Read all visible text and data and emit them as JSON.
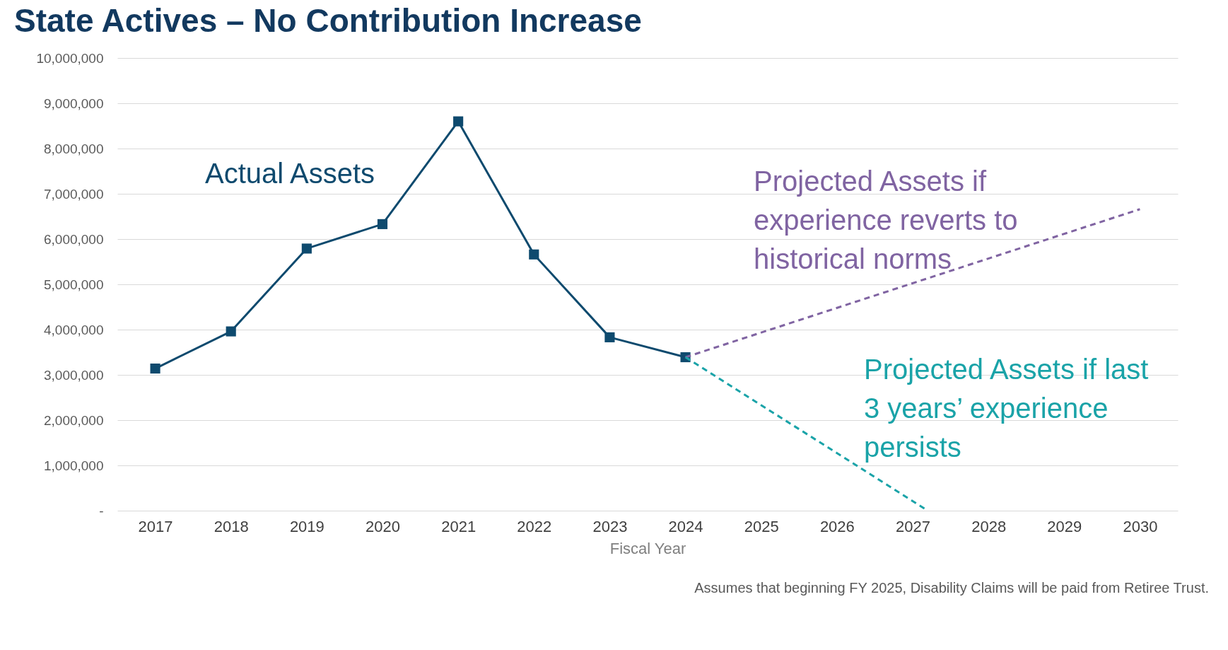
{
  "chart_data": {
    "type": "line",
    "title": "State Actives – No Contribution Increase",
    "xlabel": "Fiscal Year",
    "annotations": [
      "Assumes that beginning FY 2025, Disability Claims will be paid from Retiree Trust."
    ],
    "xlim": [
      2016.5,
      2030.5
    ],
    "xticks": [
      2017,
      2018,
      2019,
      2020,
      2021,
      2022,
      2023,
      2024,
      2025,
      2026,
      2027,
      2028,
      2029,
      2030
    ],
    "ylim": [
      0,
      10000000
    ],
    "yticks": [
      {
        "value": 0,
        "label": "-"
      },
      {
        "value": 1000000,
        "label": "1,000,000"
      },
      {
        "value": 2000000,
        "label": "2,000,000"
      },
      {
        "value": 3000000,
        "label": "3,000,000"
      },
      {
        "value": 4000000,
        "label": "4,000,000"
      },
      {
        "value": 5000000,
        "label": "5,000,000"
      },
      {
        "value": 6000000,
        "label": "6,000,000"
      },
      {
        "value": 7000000,
        "label": "7,000,000"
      },
      {
        "value": 8000000,
        "label": "8,000,000"
      },
      {
        "value": 9000000,
        "label": "9,000,000"
      },
      {
        "value": 10000000,
        "label": "10,000,000"
      }
    ],
    "grid": "y",
    "series": [
      {
        "name": "Actual Assets",
        "color": "#0e4a6e",
        "marker": "square",
        "line_style": "solid",
        "x": [
          2017,
          2018,
          2019,
          2020,
          2021,
          2022,
          2023,
          2024
        ],
        "values": [
          3140000,
          3960000,
          5790000,
          6330000,
          8600000,
          5660000,
          3830000,
          3390000
        ]
      },
      {
        "name": "Projected Assets if experience reverts to historical norms",
        "color": "#8064a2",
        "marker": "none",
        "line_style": "dashed",
        "x": [
          2024,
          2030
        ],
        "values": [
          3390000,
          6660000
        ]
      },
      {
        "name": "Projected Assets if last 3 years’ experience persists",
        "color": "#1aa3a8",
        "marker": "none",
        "line_style": "dashed",
        "x": [
          2024,
          2027.2
        ],
        "values": [
          3390000,
          0
        ]
      }
    ]
  }
}
